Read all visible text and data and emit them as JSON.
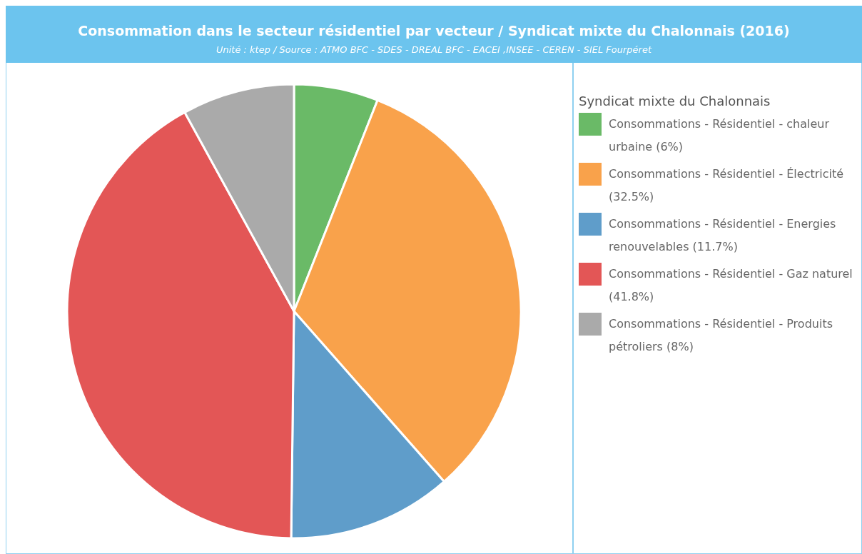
{
  "chart_data": {
    "type": "pie",
    "title": "Consommation dans le secteur résidentiel par vecteur / Syndicat mixte du Chalonnais (2016)",
    "subtitle": "Unité : ktep / Source : ATMO BFC - SDES - DREAL BFC - EACEI ,INSEE - CEREN - SIEL Fourpéret",
    "legend_title": "Syndicat mixte du Chalonnais",
    "legend": "right",
    "categories": [
      "Consommations - Résidentiel - chaleur urbaine (6%)",
      "Consommations - Résidentiel - Électricité (32.5%)",
      "Consommations - Résidentiel - Energies renouvelables (11.7%)",
      "Consommations - Résidentiel - Gaz naturel (41.8%)",
      "Consommations - Résidentiel - Produits pétroliers (8%)"
    ],
    "values": [
      6,
      32.5,
      11.7,
      41.8,
      8
    ],
    "colors": [
      "#6aba67",
      "#f9a24b",
      "#5f9dca",
      "#e35656",
      "#aaaaaa"
    ]
  }
}
